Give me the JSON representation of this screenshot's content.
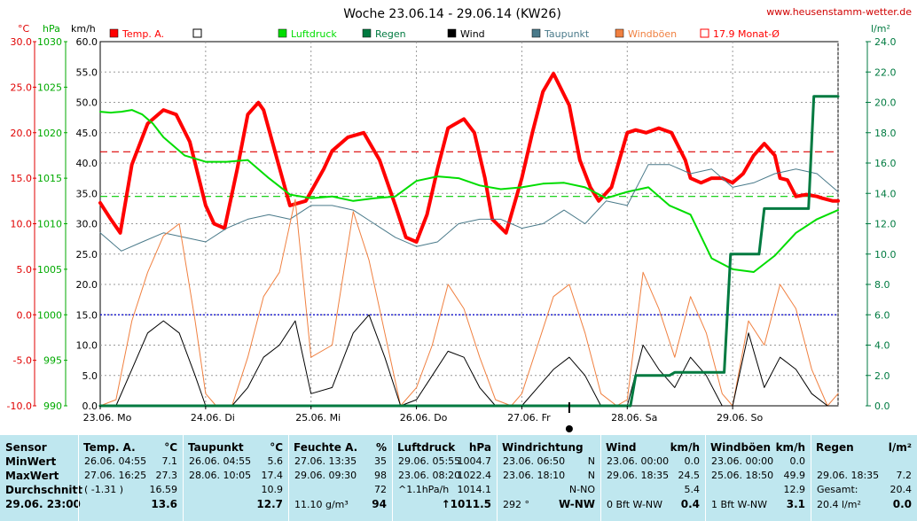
{
  "title": "Woche 23.06.14 - 29.06.14 (KW26)",
  "site": "www.heusenstamm-wetter.de",
  "axis_units": {
    "temp": "°C",
    "hpa": "hPa",
    "kmh": "km/h",
    "rain": "l/m²"
  },
  "legend": [
    {
      "label": "Temp. A.",
      "color": "#ff0000",
      "style": "box"
    },
    {
      "label": "",
      "color": "#000000",
      "style": "empty"
    },
    {
      "label": "Luftdruck",
      "color": "#00dd00",
      "style": "box"
    },
    {
      "label": "Regen",
      "color": "#007a40",
      "style": "box"
    },
    {
      "label": "Wind",
      "color": "#000000",
      "style": "box"
    },
    {
      "label": "Taupunkt",
      "color": "#4a7a8a",
      "style": "box"
    },
    {
      "label": "Windböen",
      "color": "#f08040",
      "style": "box"
    },
    {
      "label": "17.9 Monat-Ø",
      "color": "#ff0000",
      "style": "empty"
    }
  ],
  "chart_data": {
    "type": "line",
    "x_tick_labels": [
      "23.06. Mo",
      "24.06. Di",
      "25.06. Mi",
      "26.06. Do",
      "27.06. Fr",
      "28.06. Sa",
      "29.06. So"
    ],
    "temp_ticks": [
      "30.0",
      "25.0",
      "20.0",
      "15.0",
      "10.0",
      "5.0",
      "0.0",
      "-5.0",
      "-10.0"
    ],
    "hpa_ticks": [
      "1030",
      "1025",
      "1020",
      "1015",
      "1010",
      "1005",
      "1000",
      "995",
      "990"
    ],
    "kmh_ticks": [
      "60.0",
      "55.0",
      "50.0",
      "45.0",
      "40.0",
      "35.0",
      "30.0",
      "25.0",
      "20.0",
      "15.0",
      "10.0",
      "5.0",
      "0.0"
    ],
    "rain_ticks": [
      "24.0",
      "22.0",
      "20.0",
      "18.0",
      "16.0",
      "14.0",
      "12.0",
      "10.0",
      "8.0",
      "6.0",
      "4.0",
      "2.0",
      "0.0"
    ],
    "temp_range": [
      -10,
      30
    ],
    "hpa_range": [
      990,
      1030
    ],
    "kmh_range": [
      0,
      60
    ],
    "rain_range": [
      0,
      24
    ],
    "x_range_days": [
      0,
      7
    ],
    "month_avg_temp": 17.9,
    "series": [
      {
        "name": "Temp. A.",
        "color": "#ff0000",
        "width": 4,
        "scale": "temp",
        "x": [
          0,
          0.1,
          0.19,
          0.3,
          0.45,
          0.6,
          0.72,
          0.85,
          1.0,
          1.08,
          1.18,
          1.3,
          1.4,
          1.5,
          1.55,
          1.68,
          1.8,
          1.95,
          2.12,
          2.2,
          2.35,
          2.5,
          2.65,
          2.8,
          2.9,
          3.0,
          3.1,
          3.2,
          3.3,
          3.45,
          3.55,
          3.65,
          3.72,
          3.85,
          4.0,
          4.1,
          4.2,
          4.3,
          4.45,
          4.55,
          4.65,
          4.73,
          4.85,
          5.0,
          5.08,
          5.18,
          5.3,
          5.42,
          5.55,
          5.6,
          5.7,
          5.8,
          5.9,
          6.0,
          6.1,
          6.2,
          6.3,
          6.4,
          6.45,
          6.52,
          6.6,
          6.7,
          6.8,
          6.85,
          6.95,
          7.0
        ],
        "y": [
          12.3,
          10.5,
          9.0,
          16.5,
          21.0,
          22.5,
          22.0,
          19.0,
          12.0,
          10.0,
          9.5,
          16.0,
          22.0,
          23.3,
          22.5,
          17.0,
          12.0,
          12.5,
          16.0,
          18.0,
          19.5,
          20.0,
          17.0,
          12.0,
          8.5,
          8.0,
          11.0,
          16.0,
          20.5,
          21.5,
          20.0,
          15.0,
          10.5,
          9.0,
          15.0,
          20.0,
          24.5,
          26.5,
          23.0,
          17.0,
          14.0,
          12.5,
          14.0,
          20.0,
          20.3,
          20.0,
          20.5,
          20.0,
          17.0,
          15.0,
          14.5,
          15.0,
          15.0,
          14.5,
          15.5,
          17.5,
          18.8,
          17.5,
          15.0,
          14.8,
          13.0,
          13.2,
          13.0,
          12.8,
          12.5,
          12.5
        ]
      },
      {
        "name": "Luftdruck",
        "color": "#00dd00",
        "width": 2,
        "scale": "hpa",
        "x": [
          0,
          0.1,
          0.2,
          0.3,
          0.4,
          0.5,
          0.6,
          0.8,
          1.0,
          1.2,
          1.4,
          1.6,
          1.8,
          2.0,
          2.2,
          2.4,
          2.6,
          2.8,
          3.0,
          3.2,
          3.4,
          3.6,
          3.8,
          4.0,
          4.2,
          4.4,
          4.6,
          4.8,
          5.0,
          5.2,
          5.4,
          5.6,
          5.8,
          6.0,
          6.2,
          6.4,
          6.6,
          6.8,
          7.0
        ],
        "y": [
          1022.3,
          1022.2,
          1022.3,
          1022.5,
          1022.0,
          1021.0,
          1019.5,
          1017.5,
          1016.8,
          1016.8,
          1017.0,
          1015.0,
          1013.2,
          1012.8,
          1013.0,
          1012.5,
          1012.8,
          1013.0,
          1014.7,
          1015.2,
          1015.0,
          1014.2,
          1013.8,
          1014.0,
          1014.4,
          1014.5,
          1014.0,
          1012.8,
          1013.5,
          1014.0,
          1012.0,
          1011.0,
          1006.2,
          1005.0,
          1004.7,
          1006.5,
          1009.0,
          1010.5,
          1011.5
        ]
      },
      {
        "name": "Taupunkt",
        "color": "#4a7a8a",
        "width": 1,
        "scale": "temp",
        "x": [
          0,
          0.2,
          0.4,
          0.6,
          0.8,
          1.0,
          1.2,
          1.4,
          1.6,
          1.8,
          2.0,
          2.2,
          2.4,
          2.6,
          2.8,
          3.0,
          3.2,
          3.4,
          3.6,
          3.8,
          4.0,
          4.2,
          4.4,
          4.6,
          4.8,
          5.0,
          5.2,
          5.4,
          5.6,
          5.8,
          6.0,
          6.2,
          6.4,
          6.6,
          6.8,
          7.0
        ],
        "y": [
          9.0,
          7.0,
          8.0,
          9.0,
          8.5,
          8.0,
          9.5,
          10.5,
          11.0,
          10.5,
          12.0,
          12.0,
          11.5,
          10.0,
          8.5,
          7.5,
          8.0,
          10.0,
          10.5,
          10.5,
          9.5,
          10.0,
          11.5,
          10.0,
          12.5,
          12.0,
          16.5,
          16.5,
          15.5,
          16.0,
          14.0,
          14.5,
          15.5,
          16.0,
          15.5,
          13.5
        ]
      },
      {
        "name": "Windböen",
        "color": "#f08040",
        "width": 1,
        "scale": "kmh",
        "x": [
          0,
          0.15,
          0.3,
          0.45,
          0.6,
          0.75,
          0.9,
          1.0,
          1.1,
          1.25,
          1.4,
          1.55,
          1.7,
          1.85,
          2.0,
          2.2,
          2.4,
          2.55,
          2.7,
          2.85,
          3.0,
          3.15,
          3.3,
          3.45,
          3.6,
          3.75,
          3.9,
          4.0,
          4.15,
          4.3,
          4.45,
          4.6,
          4.75,
          4.9,
          5.0,
          5.15,
          5.3,
          5.45,
          5.6,
          5.75,
          5.9,
          6.0,
          6.15,
          6.3,
          6.45,
          6.6,
          6.75,
          6.9,
          7.0
        ],
        "y": [
          0,
          1,
          14,
          22,
          28,
          30,
          14,
          2,
          0,
          0,
          8,
          18,
          22,
          34,
          8,
          10,
          32,
          24,
          12,
          0,
          3,
          10,
          20,
          16,
          8,
          1,
          0,
          2,
          10,
          18,
          20,
          12,
          2,
          0,
          1,
          22,
          16,
          8,
          18,
          12,
          2,
          0,
          14,
          10,
          20,
          16,
          6,
          0,
          2
        ]
      },
      {
        "name": "Wind",
        "color": "#000000",
        "width": 1,
        "scale": "kmh",
        "x": [
          0,
          0.15,
          0.3,
          0.45,
          0.6,
          0.75,
          0.9,
          1.0,
          1.1,
          1.25,
          1.4,
          1.55,
          1.7,
          1.85,
          2.0,
          2.2,
          2.4,
          2.55,
          2.7,
          2.85,
          3.0,
          3.15,
          3.3,
          3.45,
          3.6,
          3.75,
          3.9,
          4.0,
          4.15,
          4.3,
          4.45,
          4.6,
          4.75,
          4.9,
          5.0,
          5.15,
          5.3,
          5.45,
          5.6,
          5.75,
          5.9,
          6.0,
          6.15,
          6.3,
          6.45,
          6.6,
          6.75,
          6.9,
          7.0
        ],
        "y": [
          0,
          0,
          6,
          12,
          14,
          12,
          5,
          0,
          0,
          0,
          3,
          8,
          10,
          14,
          2,
          3,
          12,
          15,
          8,
          0,
          1,
          5,
          9,
          8,
          3,
          0,
          0,
          0,
          3,
          6,
          8,
          5,
          0,
          0,
          0,
          10,
          6,
          3,
          8,
          5,
          0,
          0,
          12,
          3,
          8,
          6,
          2,
          0,
          0
        ]
      },
      {
        "name": "Regen",
        "color": "#007a40",
        "width": 3,
        "scale": "rain",
        "step": true,
        "x": [
          0,
          5.03,
          5.08,
          5.4,
          5.45,
          5.92,
          5.98,
          6.25,
          6.3,
          6.72,
          6.77,
          7.0
        ],
        "y": [
          0,
          0,
          2.0,
          2.0,
          2.2,
          2.2,
          10.0,
          10.0,
          13.0,
          13.0,
          20.4,
          20.4
        ]
      }
    ]
  },
  "table": {
    "row_labels": [
      "Sensor",
      "MinWert",
      "MaxWert",
      "Durchschnitt",
      "29.06. 23:00"
    ],
    "columns": [
      {
        "header": "Temp. A.",
        "unit": "°C",
        "rows": [
          [
            "26.06.  04:55",
            "7.1"
          ],
          [
            "27.06.  16:25",
            "27.3"
          ],
          [
            "( -1.31 )",
            "16.59"
          ]
        ],
        "current": "13.6"
      },
      {
        "header": "Taupunkt",
        "unit": "°C",
        "rows": [
          [
            "26.06.  04:55",
            "5.6"
          ],
          [
            "28.06.  10:05",
            "17.4"
          ],
          [
            "",
            "10.9"
          ]
        ],
        "current": "12.7"
      },
      {
        "header": "Feuchte A.",
        "unit": "%",
        "rows": [
          [
            "27.06.  13:35",
            "35"
          ],
          [
            "29.06.  09:30",
            "98"
          ],
          [
            "",
            "72"
          ]
        ],
        "current_left": "11.10 g/m³",
        "current": "94"
      },
      {
        "header": "Luftdruck",
        "unit": "hPa",
        "rows": [
          [
            "29.06.  05:55",
            "1004.7"
          ],
          [
            "23.06.  08:20",
            "1022.4"
          ],
          [
            "^1.1hPa/h",
            "1014.1"
          ]
        ],
        "current": "↑1011.5"
      },
      {
        "header": "Windrichtung",
        "unit": "",
        "rows": [
          [
            "23.06.  06:50",
            "N"
          ],
          [
            "23.06.  18:10",
            "N"
          ],
          [
            "",
            "N-NO"
          ]
        ],
        "current_left": "292 °",
        "current": "W-NW"
      },
      {
        "header": "Wind",
        "unit": "km/h",
        "rows": [
          [
            "23.06.  00:00",
            "0.0"
          ],
          [
            "29.06.  18:35",
            "24.5"
          ],
          [
            "",
            "5.4"
          ]
        ],
        "current_left": "0 Bft W-NW",
        "current": "0.4"
      },
      {
        "header": "Windböen",
        "unit": "km/h",
        "rows": [
          [
            "23.06.  00:00",
            "0.0"
          ],
          [
            "25.06.  18:50",
            "49.9"
          ],
          [
            "",
            "12.9"
          ]
        ],
        "current_left": "1 Bft W-NW",
        "current": "3.1"
      },
      {
        "header": "Regen",
        "unit": "l/m²",
        "rows": [
          [
            "",
            ""
          ],
          [
            "29.06.  18:35",
            "7.2"
          ],
          [
            "Gesamt:",
            "20.4"
          ]
        ],
        "current_left": "20.4 l/m²",
        "current": "0.0"
      }
    ]
  }
}
